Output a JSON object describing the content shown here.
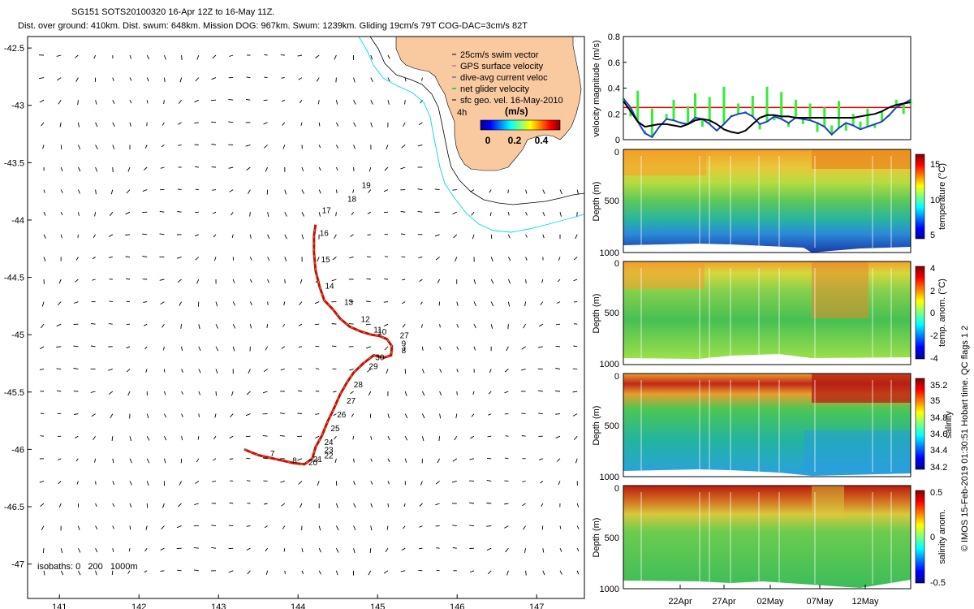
{
  "header": {
    "title_line1": "SG151 SOTS20100320 16-Apr 12Z to 16-May 11Z.",
    "title_line2": "Dist. over ground: 410km. Dist. swum: 648km. Mission DOG: 967km. Swum: 1239km. Gliding 19cm/s 79T COG-DAC=3cm/s 82T"
  },
  "colors": {
    "land": "#f9c9a0",
    "isobath_200": "#000000",
    "isobath_1000": "#00d8f0",
    "track": "#e00000",
    "reference_line": "#e00000",
    "gps_velocity": "#33ee33",
    "dac_velocity": "#1f3fc8",
    "smoothed_velocity": "#000000"
  },
  "map": {
    "legend": {
      "swim_vector": "25cm/s swim vector",
      "gps_velocity": "GPS surface velocity",
      "dac": "dive-avg current veloc",
      "net": "net glider velocity",
      "sfc": "sfc geo. vel. 16-May-2010"
    },
    "time_label": "4h",
    "colorbar_title": "(m/s)",
    "colorbar_ticks": [
      "0",
      "0.2",
      "0.4"
    ],
    "isobath_note": "isobaths: 0   200   1000m"
  },
  "side_label": "© IMOS 15-Feb-2019 01:30:51 Hobart time. QC flags 1  2",
  "chart_data": [
    {
      "type": "scatter",
      "name": "glider-track-map",
      "xlim": [
        140.6,
        147.6
      ],
      "ylim": [
        -47.3,
        -42.4
      ],
      "x_ticks": [
        "141",
        "142",
        "143",
        "144",
        "145",
        "146",
        "147"
      ],
      "y_ticks": [
        "-42.5",
        "-43",
        "-43.5",
        "-44",
        "-44.5",
        "-45",
        "-45.5",
        "-46",
        "-46.5",
        "-47"
      ],
      "track": [
        [
          143.32,
          -46.0
        ],
        [
          143.5,
          -46.05
        ],
        [
          143.75,
          -46.09
        ],
        [
          143.95,
          -46.12
        ],
        [
          144.08,
          -46.13
        ],
        [
          144.18,
          -46.08
        ],
        [
          144.22,
          -45.98
        ],
        [
          144.3,
          -45.88
        ],
        [
          144.37,
          -45.76
        ],
        [
          144.44,
          -45.66
        ],
        [
          144.53,
          -45.52
        ],
        [
          144.62,
          -45.41
        ],
        [
          144.7,
          -45.33
        ],
        [
          144.82,
          -45.25
        ],
        [
          144.95,
          -45.18
        ],
        [
          145.08,
          -45.2
        ],
        [
          145.17,
          -45.18
        ],
        [
          145.18,
          -45.1
        ],
        [
          145.12,
          -45.04
        ],
        [
          145.02,
          -45.01
        ],
        [
          144.92,
          -45.0
        ],
        [
          144.78,
          -44.97
        ],
        [
          144.65,
          -44.93
        ],
        [
          144.53,
          -44.86
        ],
        [
          144.44,
          -44.78
        ],
        [
          144.33,
          -44.7
        ],
        [
          144.27,
          -44.58
        ],
        [
          144.22,
          -44.44
        ],
        [
          144.2,
          -44.28
        ],
        [
          144.2,
          -44.14
        ],
        [
          144.22,
          -44.04
        ]
      ],
      "day_labels": [
        {
          "day": "17",
          "x": 144.3,
          "y": -43.94
        },
        {
          "day": "18",
          "x": 144.62,
          "y": -43.84
        },
        {
          "day": "19",
          "x": 144.8,
          "y": -43.72
        },
        {
          "day": "16",
          "x": 144.27,
          "y": -44.14
        },
        {
          "day": "15",
          "x": 144.29,
          "y": -44.37
        },
        {
          "day": "14",
          "x": 144.34,
          "y": -44.6
        },
        {
          "day": "13",
          "x": 144.58,
          "y": -44.74
        },
        {
          "day": "12",
          "x": 144.79,
          "y": -44.89
        },
        {
          "day": "11",
          "x": 144.95,
          "y": -44.98
        },
        {
          "day": "10",
          "x": 145.0,
          "y": -45.0
        },
        {
          "day": "27",
          "x": 145.28,
          "y": -45.03
        },
        {
          "day": "9",
          "x": 145.3,
          "y": -45.1
        },
        {
          "day": "8",
          "x": 145.3,
          "y": -45.16
        },
        {
          "day": "30",
          "x": 144.97,
          "y": -45.22
        },
        {
          "day": "29",
          "x": 144.89,
          "y": -45.3
        },
        {
          "day": "28",
          "x": 144.7,
          "y": -45.46
        },
        {
          "day": "27",
          "x": 144.61,
          "y": -45.6
        },
        {
          "day": "26",
          "x": 144.49,
          "y": -45.72
        },
        {
          "day": "25",
          "x": 144.41,
          "y": -45.84
        },
        {
          "day": "24",
          "x": 144.33,
          "y": -45.96
        },
        {
          "day": "23",
          "x": 144.33,
          "y": -46.03
        },
        {
          "day": "22",
          "x": 144.33,
          "y": -46.08
        },
        {
          "day": "21",
          "x": 144.19,
          "y": -46.11
        },
        {
          "day": "20",
          "x": 144.13,
          "y": -46.14
        },
        {
          "day": "7",
          "x": 143.65,
          "y": -46.06
        },
        {
          "day": "8",
          "x": 143.93,
          "y": -46.12
        }
      ]
    },
    {
      "type": "line",
      "name": "velocity-magnitude",
      "ylabel": "velocity magnitude (m/s)",
      "ylim": [
        0,
        0.8
      ],
      "y_ticks": [
        "0",
        "0.2",
        "0.4",
        "0.6",
        "0.8"
      ],
      "reference_line": 0.25,
      "series": [
        {
          "name": "dive-avg current",
          "values": [
            0.32,
            0.25,
            0.14,
            0.05,
            0.02,
            0.1,
            0.16,
            0.15,
            0.13,
            0.12,
            0.17,
            0.16,
            0.12,
            0.07,
            0.12,
            0.18,
            0.2,
            0.21,
            0.18,
            0.12,
            0.14,
            0.18,
            0.16,
            0.13,
            0.17,
            0.16,
            0.15,
            0.13,
            0.1,
            0.04,
            0.09,
            0.13,
            0.11,
            0.08,
            0.1,
            0.12,
            0.14,
            0.19,
            0.25,
            0.28,
            0.31
          ]
        },
        {
          "name": "smoothed",
          "values": [
            0.3,
            0.22,
            0.14,
            0.1,
            0.11,
            0.12,
            0.12,
            0.11,
            0.1,
            0.12,
            0.15,
            0.16,
            0.15,
            0.12,
            0.08,
            0.06,
            0.05,
            0.07,
            0.12,
            0.17,
            0.19,
            0.19,
            0.18,
            0.18,
            0.17,
            0.17,
            0.17,
            0.17,
            0.17,
            0.17,
            0.17,
            0.17,
            0.17,
            0.18,
            0.19,
            0.2,
            0.22,
            0.25,
            0.27,
            0.28,
            0.29
          ]
        },
        {
          "name": "GPS surface velocity",
          "values": [
            0.3,
            0.18,
            0.38,
            0.07,
            0.24,
            0.1,
            0.2,
            0.31,
            0.14,
            0.26,
            0.36,
            0.1,
            0.33,
            0.07,
            0.41,
            0.19,
            0.28,
            0.22,
            0.34,
            0.08,
            0.41,
            0.15,
            0.37,
            0.1,
            0.31,
            0.12,
            0.28,
            0.06,
            0.25,
            0.11,
            0.3,
            0.07,
            0.2,
            0.14,
            0.24,
            0.09,
            0.22,
            0.18,
            0.31,
            0.2,
            0.27
          ]
        }
      ]
    },
    {
      "type": "heatmap",
      "name": "temperature-section",
      "ylabel": "Depth (m)",
      "y_ticks": [
        "0",
        "500",
        "1000"
      ],
      "colorbar_label": "temperature (°C)",
      "colorbar_ticks": [
        "15",
        "10",
        "5"
      ],
      "clim": [
        4,
        16
      ]
    },
    {
      "type": "heatmap",
      "name": "temperature-anomaly-section",
      "ylabel": "Depth (m)",
      "y_ticks": [
        "0",
        "500",
        "1000"
      ],
      "colorbar_label": "temp. anom. (°C)",
      "colorbar_ticks": [
        "4",
        "2",
        "0",
        "-2",
        "-4"
      ],
      "clim": [
        -4,
        4
      ]
    },
    {
      "type": "heatmap",
      "name": "salinity-section",
      "ylabel": "Depth (m)",
      "y_ticks": [
        "0",
        "500",
        "1000"
      ],
      "colorbar_label": "salinity",
      "colorbar_ticks": [
        "35.2",
        "35",
        "34.8",
        "34.6",
        "34.4",
        "34.2"
      ],
      "clim": [
        34.15,
        35.25
      ]
    },
    {
      "type": "heatmap",
      "name": "salinity-anomaly-section",
      "ylabel": "Depth (m)",
      "y_ticks": [
        "0",
        "500",
        "1000"
      ],
      "colorbar_label": "salinity anom.",
      "colorbar_ticks": [
        "0.5",
        "0",
        "-0.5"
      ],
      "clim": [
        -0.55,
        0.55
      ],
      "x_ticks": [
        "22Apr",
        "27Apr",
        "02May",
        "07May",
        "12May"
      ]
    }
  ]
}
